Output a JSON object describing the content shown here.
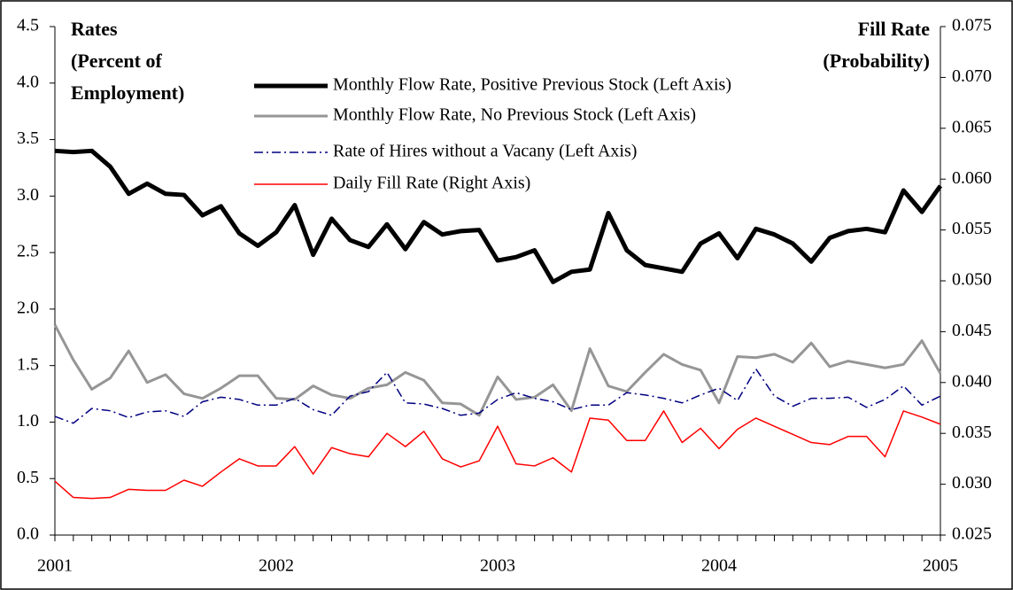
{
  "chart_data": {
    "type": "line",
    "ylabel": [
      "Rates",
      "(Percent of",
      "Employment)"
    ],
    "y2label": [
      "Fill Rate",
      "(Probability)"
    ],
    "categories": [
      "2001",
      null,
      null,
      null,
      null,
      null,
      null,
      null,
      null,
      null,
      null,
      null,
      "2002",
      null,
      null,
      null,
      null,
      null,
      null,
      null,
      null,
      null,
      null,
      null,
      "2003",
      null,
      null,
      null,
      null,
      null,
      null,
      null,
      null,
      null,
      null,
      null,
      "2004",
      null,
      null,
      null,
      null,
      null,
      null,
      null,
      null,
      null,
      null,
      null,
      "2005"
    ],
    "ylim": [
      0,
      4.5
    ],
    "yticks": [
      {
        "value": 0,
        "label": "0.0"
      },
      0.5,
      {
        "value": 1,
        "label": "1.0"
      },
      1.5,
      {
        "value": 2,
        "label": "2.0"
      },
      2.5,
      {
        "value": 3,
        "label": "3.0"
      },
      3.5,
      {
        "value": 4,
        "label": "4.0"
      },
      4.5
    ],
    "y2lim": [
      0.025,
      0.075
    ],
    "y2ticks": [
      0.025,
      {
        "value": 0.03,
        "label": "0.030"
      },
      0.035,
      {
        "value": 0.04,
        "label": "0.040"
      },
      0.045,
      {
        "value": 0.05,
        "label": "0.050"
      },
      0.055,
      {
        "value": 0.06,
        "label": "0.060"
      },
      0.065,
      {
        "value": 0.07,
        "label": "0.070"
      },
      0.075
    ],
    "series": [
      {
        "name": "Monthly Flow Rate, Positive Previous Stock (Left Axis)",
        "color": "#000000",
        "linewidth": 5,
        "dash": "solid",
        "values": [
          3.4,
          3.39,
          3.4,
          3.26,
          3.02,
          3.11,
          3.02,
          3.01,
          2.83,
          2.91,
          2.67,
          2.56,
          2.68,
          2.92,
          2.48,
          2.8,
          2.61,
          2.55,
          2.75,
          2.53,
          2.77,
          2.66,
          2.69,
          2.7,
          2.43,
          2.46,
          2.52,
          2.24,
          2.33,
          2.35,
          2.85,
          2.52,
          2.39,
          2.36,
          2.33,
          2.58,
          2.67,
          2.45,
          2.71,
          2.66,
          2.58,
          2.42,
          2.63,
          2.69,
          2.71,
          2.68,
          3.05,
          2.86,
          3.09
        ]
      },
      {
        "name": "Monthly Flow Rate, No Previous Stock (Left Axis)",
        "color": "#969696",
        "linewidth": 3,
        "dash": "solid",
        "values": [
          1.86,
          1.55,
          1.29,
          1.39,
          1.63,
          1.35,
          1.42,
          1.25,
          1.21,
          1.3,
          1.41,
          1.41,
          1.21,
          1.2,
          1.32,
          1.24,
          1.21,
          1.3,
          1.33,
          1.44,
          1.37,
          1.17,
          1.16,
          1.06,
          1.4,
          1.2,
          1.22,
          1.33,
          1.1,
          1.65,
          1.32,
          1.27,
          1.44,
          1.6,
          1.51,
          1.46,
          1.17,
          1.58,
          1.57,
          1.6,
          1.53,
          1.7,
          1.49,
          1.54,
          1.51,
          1.48,
          1.51,
          1.72,
          1.43
        ]
      },
      {
        "name": "Rate of Hires without a Vacany (Left Axis)",
        "color": "#000080",
        "linewidth": 1.5,
        "dash": "dash-dot",
        "values": [
          1.05,
          0.99,
          1.12,
          1.1,
          1.04,
          1.09,
          1.1,
          1.05,
          1.18,
          1.22,
          1.2,
          1.15,
          1.15,
          1.21,
          1.11,
          1.06,
          1.23,
          1.27,
          1.44,
          1.17,
          1.16,
          1.12,
          1.06,
          1.08,
          1.2,
          1.26,
          1.21,
          1.18,
          1.11,
          1.15,
          1.15,
          1.26,
          1.24,
          1.21,
          1.17,
          1.24,
          1.3,
          1.19,
          1.47,
          1.23,
          1.14,
          1.21,
          1.21,
          1.22,
          1.13,
          1.2,
          1.32,
          1.15,
          1.23
        ]
      },
      {
        "name": "Daily Fill Rate (Right Axis)",
        "color": "#ff0000",
        "linewidth": 1.5,
        "dash": "solid",
        "axis": "y2",
        "values": [
          0.0303,
          0.0287,
          0.0286,
          0.0287,
          0.0295,
          0.0294,
          0.0294,
          0.0304,
          0.0298,
          0.0312,
          0.0325,
          0.0318,
          0.0318,
          0.0337,
          0.031,
          0.0336,
          0.033,
          0.0327,
          0.035,
          0.0337,
          0.0352,
          0.0325,
          0.0317,
          0.0323,
          0.0357,
          0.032,
          0.0318,
          0.0326,
          0.0312,
          0.0365,
          0.0363,
          0.0343,
          0.0343,
          0.0372,
          0.0341,
          0.0355,
          0.0335,
          0.0354,
          0.0365,
          0.0357,
          0.0349,
          0.0341,
          0.0339,
          0.0347,
          0.0347,
          0.0327,
          0.0372,
          0.0366,
          0.0359
        ]
      }
    ]
  }
}
